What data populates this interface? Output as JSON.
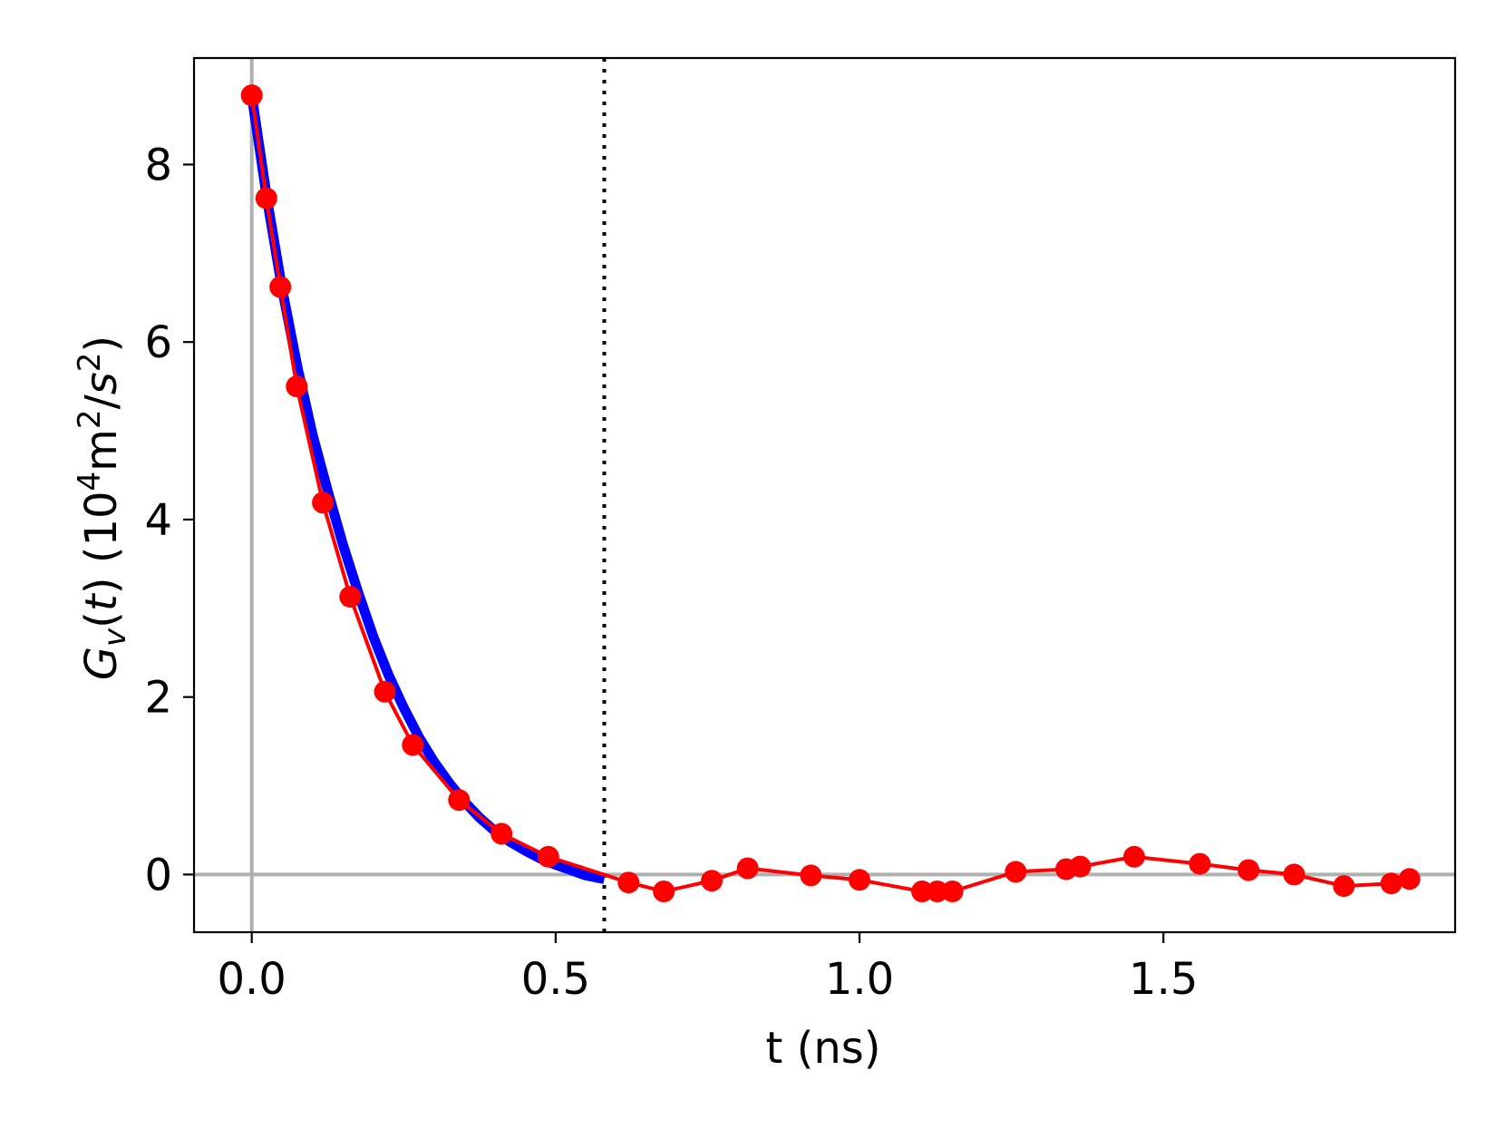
{
  "chart_data": {
    "type": "line",
    "xlabel": "t (ns)",
    "ylabel_parts": {
      "symbol": "G",
      "subscript": "v",
      "paren_open": "(",
      "variable": "t",
      "paren_close": ")",
      "unit_open": " (10",
      "unit_exp1": "4",
      "unit_mid": "m",
      "unit_exp2": "2",
      "unit_slash": "/",
      "unit_s": "s",
      "unit_exp3": "2",
      "unit_close": ")"
    },
    "xlim": [
      -0.095,
      1.98
    ],
    "ylim": [
      -0.65,
      9.2
    ],
    "xticks": [
      0.0,
      0.5,
      1.0,
      1.5
    ],
    "xtick_labels": [
      "0.0",
      "0.5",
      "1.0",
      "1.5"
    ],
    "yticks": [
      0,
      2,
      4,
      6,
      8
    ],
    "ytick_labels": [
      "0",
      "2",
      "4",
      "6",
      "8"
    ],
    "reference_lines": {
      "horizontal_y": 0,
      "vertical_x": 0,
      "dotted_vertical_x": 0.58
    },
    "colors": {
      "data": "#ff0000",
      "fit": "#0000ff",
      "reference": "#b0b0b0",
      "dotted": "#000000"
    },
    "series": [
      {
        "style": "blue-fit-curve",
        "x": [
          0.0,
          0.025,
          0.05,
          0.075,
          0.1,
          0.125,
          0.15,
          0.175,
          0.2,
          0.225,
          0.25,
          0.275,
          0.3,
          0.325,
          0.35,
          0.375,
          0.4,
          0.425,
          0.45,
          0.475,
          0.5,
          0.525,
          0.55,
          0.58
        ],
        "y": [
          8.78,
          7.62,
          6.6,
          5.72,
          4.96,
          4.32,
          3.72,
          3.18,
          2.68,
          2.25,
          1.88,
          1.55,
          1.27,
          1.03,
          0.82,
          0.64,
          0.49,
          0.37,
          0.27,
          0.18,
          0.11,
          0.05,
          -0.01,
          -0.05
        ]
      },
      {
        "style": "red-data-markers-line",
        "x": [
          0.0,
          0.024,
          0.047,
          0.074,
          0.117,
          0.162,
          0.219,
          0.265,
          0.341,
          0.411,
          0.488,
          0.62,
          0.678,
          0.757,
          0.816,
          0.92,
          1.0,
          1.103,
          1.128,
          1.153,
          1.257,
          1.34,
          1.363,
          1.452,
          1.56,
          1.64,
          1.715,
          1.797,
          1.875,
          1.905
        ],
        "y": [
          8.78,
          7.62,
          6.62,
          5.5,
          4.19,
          3.13,
          2.06,
          1.46,
          0.84,
          0.46,
          0.2,
          -0.09,
          -0.19,
          -0.07,
          0.07,
          -0.01,
          -0.06,
          -0.19,
          -0.19,
          -0.19,
          0.03,
          0.06,
          0.09,
          0.2,
          0.12,
          0.05,
          0.0,
          -0.13,
          -0.1,
          -0.05
        ]
      }
    ]
  }
}
